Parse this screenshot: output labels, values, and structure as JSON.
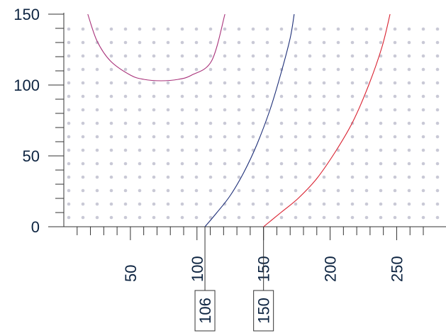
{
  "chart_data": {
    "type": "line",
    "title": "",
    "xlabel": "",
    "ylabel": "",
    "xlim": [
      0,
      270
    ],
    "ylim": [
      0,
      150
    ],
    "x_ticks": [
      50,
      100,
      150,
      200,
      250
    ],
    "y_ticks": [
      0,
      50,
      100,
      150
    ],
    "x_minor_step": 10,
    "y_minor_step": 10,
    "grid": "dotted",
    "grid_color": "#c9c9d6",
    "axis_color": "#333333",
    "text_color": "#0c2340",
    "series": [
      {
        "color": "#a8327a",
        "x": [
          18,
          25,
          35,
          50,
          60,
          73,
          86,
          96,
          111,
          121
        ],
        "y": [
          150,
          131,
          117,
          107,
          104,
          103,
          104,
          107,
          117,
          150
        ]
      },
      {
        "color": "#1e2f78",
        "x": [
          106,
          115,
          125,
          135,
          145,
          155,
          163,
          170,
          173
        ],
        "y": [
          0,
          10,
          22,
          38,
          58,
          83,
          108,
          133,
          150
        ]
      },
      {
        "color": "#d9202f",
        "x": [
          150,
          163,
          176,
          190,
          204,
          217,
          229,
          239,
          245
        ],
        "y": [
          0,
          10,
          20,
          34,
          53,
          74,
          100,
          127,
          150
        ]
      }
    ],
    "annotations": [
      {
        "x": 106,
        "label": "106",
        "color": "#1e2f78"
      },
      {
        "x": 150,
        "label": "150",
        "color": "#d9202f"
      }
    ]
  }
}
